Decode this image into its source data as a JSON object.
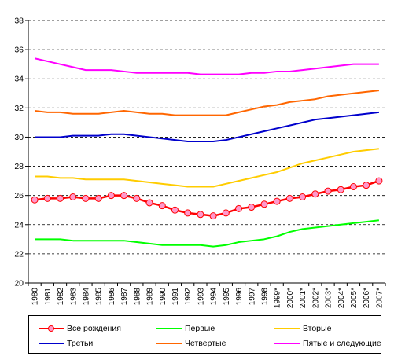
{
  "chart_data": {
    "type": "line",
    "title": "",
    "xlabel": "",
    "ylabel": "",
    "ylim": [
      20,
      38
    ],
    "y_ticks": [
      "20",
      "22",
      "24",
      "26",
      "28",
      "30",
      "32",
      "34",
      "36",
      "38"
    ],
    "grid": true,
    "legend_placement": "bottom",
    "categories": [
      "1980",
      "1981",
      "1982",
      "1983",
      "1984",
      "1985",
      "1986",
      "1987",
      "1988",
      "1989",
      "1990",
      "1991",
      "1992",
      "1993",
      "1994",
      "1995",
      "1996",
      "1997",
      "1998",
      "1999*",
      "2000*",
      "2001*",
      "2002*",
      "2003*",
      "2004*",
      "2005*",
      "2006*",
      "2007*"
    ],
    "series": [
      {
        "name": "Все рождения",
        "color": "#ff0000",
        "marker": "circle",
        "marker_fill": "#ff99cc",
        "values": [
          25.7,
          25.8,
          25.8,
          25.9,
          25.8,
          25.8,
          26.0,
          26.0,
          25.8,
          25.5,
          25.3,
          25.0,
          24.8,
          24.7,
          24.6,
          24.8,
          25.1,
          25.2,
          25.4,
          25.6,
          25.8,
          25.9,
          26.1,
          26.3,
          26.4,
          26.6,
          26.7,
          27.0
        ]
      },
      {
        "name": "Первые",
        "color": "#00ff00",
        "values": [
          23.0,
          23.0,
          23.0,
          22.9,
          22.9,
          22.9,
          22.9,
          22.9,
          22.8,
          22.7,
          22.6,
          22.6,
          22.6,
          22.6,
          22.5,
          22.6,
          22.8,
          22.9,
          23.0,
          23.2,
          23.5,
          23.7,
          23.8,
          23.9,
          24.0,
          24.1,
          24.2,
          24.3
        ]
      },
      {
        "name": "Вторые",
        "color": "#ffcc00",
        "values": [
          27.3,
          27.3,
          27.2,
          27.2,
          27.1,
          27.1,
          27.1,
          27.1,
          27.0,
          26.9,
          26.8,
          26.7,
          26.6,
          26.6,
          26.6,
          26.8,
          27.0,
          27.2,
          27.4,
          27.6,
          27.9,
          28.2,
          28.4,
          28.6,
          28.8,
          29.0,
          29.1,
          29.2
        ]
      },
      {
        "name": "Третьи",
        "color": "#0000cc",
        "values": [
          30.0,
          30.0,
          30.0,
          30.1,
          30.1,
          30.1,
          30.2,
          30.2,
          30.1,
          30.0,
          29.9,
          29.8,
          29.7,
          29.7,
          29.7,
          29.8,
          30.0,
          30.2,
          30.4,
          30.6,
          30.8,
          31.0,
          31.2,
          31.3,
          31.4,
          31.5,
          31.6,
          31.7
        ]
      },
      {
        "name": "Четвертые",
        "color": "#ff6600",
        "values": [
          31.8,
          31.7,
          31.7,
          31.6,
          31.6,
          31.6,
          31.7,
          31.8,
          31.7,
          31.6,
          31.6,
          31.5,
          31.5,
          31.5,
          31.5,
          31.5,
          31.7,
          31.9,
          32.1,
          32.2,
          32.4,
          32.5,
          32.6,
          32.8,
          32.9,
          33.0,
          33.1,
          33.2
        ]
      },
      {
        "name": "Пятые и следующие",
        "color": "#ff00ff",
        "values": [
          35.4,
          35.2,
          35.0,
          34.8,
          34.6,
          34.6,
          34.6,
          34.5,
          34.4,
          34.4,
          34.4,
          34.4,
          34.4,
          34.3,
          34.3,
          34.3,
          34.3,
          34.4,
          34.4,
          34.5,
          34.5,
          34.6,
          34.7,
          34.8,
          34.9,
          35.0,
          35.0,
          35.0
        ]
      }
    ]
  }
}
